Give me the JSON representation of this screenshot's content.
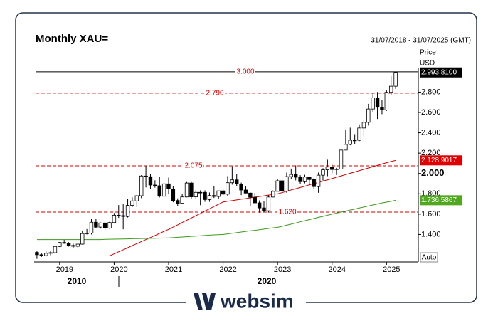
{
  "chart_data": {
    "type": "candlestick",
    "title": "Monthly XAU=",
    "date_range": "31/07/2018 - 31/07/2025 (GMT)",
    "axis_title": "Price",
    "axis_unit": "USD",
    "auto_label": "Auto",
    "brand": "websim",
    "xlim": [
      -0.3,
      84
    ],
    "xticks": [
      {
        "value": 5,
        "label": "2019"
      },
      {
        "value": 17,
        "label": "2020"
      },
      {
        "value": 29,
        "label": "2021"
      },
      {
        "value": 41,
        "label": "2022"
      },
      {
        "value": 53,
        "label": "2023"
      },
      {
        "value": 65,
        "label": "2024"
      },
      {
        "value": 77,
        "label": "2025"
      }
    ],
    "x_labels_row2": [
      "2010",
      "2020"
    ],
    "ylim": [
      1130,
      3020
    ],
    "yticks": [
      {
        "value": 1400,
        "label": "1.400"
      },
      {
        "value": 1600,
        "label": "1.600"
      },
      {
        "value": 1800,
        "label": "1.800"
      },
      {
        "value": 2000,
        "label": "2.000",
        "bold": true
      },
      {
        "value": 2200,
        "label": "2.200"
      },
      {
        "value": 2400,
        "label": "2.400"
      },
      {
        "value": 2600,
        "label": "2.600"
      },
      {
        "value": 2800,
        "label": "2.800"
      }
    ],
    "up_color": "#ffffff",
    "down_color": "#000000",
    "ohlc": [
      [
        1224,
        1236,
        1160,
        1201
      ],
      [
        1201,
        1214,
        1180,
        1192
      ],
      [
        1192,
        1243,
        1183,
        1215
      ],
      [
        1215,
        1237,
        1196,
        1221
      ],
      [
        1221,
        1284,
        1221,
        1282
      ],
      [
        1282,
        1326,
        1276,
        1321
      ],
      [
        1321,
        1346,
        1310,
        1313
      ],
      [
        1313,
        1324,
        1281,
        1292
      ],
      [
        1292,
        1309,
        1266,
        1284
      ],
      [
        1284,
        1306,
        1266,
        1305
      ],
      [
        1305,
        1439,
        1300,
        1409
      ],
      [
        1409,
        1453,
        1400,
        1413
      ],
      [
        1413,
        1555,
        1400,
        1520
      ],
      [
        1520,
        1557,
        1459,
        1472
      ],
      [
        1472,
        1518,
        1458,
        1513
      ],
      [
        1513,
        1516,
        1445,
        1463
      ],
      [
        1463,
        1525,
        1455,
        1517
      ],
      [
        1517,
        1611,
        1517,
        1589
      ],
      [
        1589,
        1689,
        1563,
        1585
      ],
      [
        1585,
        1704,
        1451,
        1577
      ],
      [
        1577,
        1747,
        1567,
        1686
      ],
      [
        1686,
        1765,
        1670,
        1730
      ],
      [
        1730,
        1786,
        1670,
        1781
      ],
      [
        1781,
        1984,
        1757,
        1975
      ],
      [
        1975,
        2075,
        1863,
        1968
      ],
      [
        1968,
        1992,
        1849,
        1886
      ],
      [
        1886,
        1933,
        1860,
        1879
      ],
      [
        1879,
        1965,
        1764,
        1776
      ],
      [
        1776,
        1906,
        1775,
        1898
      ],
      [
        1898,
        1959,
        1802,
        1847
      ],
      [
        1847,
        1872,
        1717,
        1734
      ],
      [
        1734,
        1755,
        1677,
        1707
      ],
      [
        1707,
        1798,
        1707,
        1769
      ],
      [
        1769,
        1916,
        1765,
        1906
      ],
      [
        1906,
        1917,
        1750,
        1770
      ],
      [
        1770,
        1832,
        1750,
        1814
      ],
      [
        1814,
        1834,
        1688,
        1814
      ],
      [
        1814,
        1834,
        1721,
        1743
      ],
      [
        1743,
        1813,
        1721,
        1783
      ],
      [
        1783,
        1877,
        1759,
        1774
      ],
      [
        1774,
        1831,
        1753,
        1829
      ],
      [
        1829,
        1853,
        1780,
        1796
      ],
      [
        1796,
        1974,
        1781,
        1909
      ],
      [
        1909,
        2070,
        1890,
        1937
      ],
      [
        1937,
        1998,
        1872,
        1897
      ],
      [
        1897,
        1910,
        1787,
        1837
      ],
      [
        1837,
        1879,
        1805,
        1807
      ],
      [
        1807,
        1814,
        1681,
        1766
      ],
      [
        1766,
        1808,
        1709,
        1711
      ],
      [
        1711,
        1735,
        1615,
        1661
      ],
      [
        1661,
        1730,
        1617,
        1633
      ],
      [
        1633,
        1786,
        1616,
        1768
      ],
      [
        1768,
        1833,
        1765,
        1824
      ],
      [
        1824,
        1949,
        1823,
        1928
      ],
      [
        1928,
        1959,
        1804,
        1826
      ],
      [
        1826,
        2009,
        1810,
        1969
      ],
      [
        1969,
        2048,
        1949,
        1990
      ],
      [
        1990,
        2079,
        1932,
        1963
      ],
      [
        1963,
        1983,
        1893,
        1919
      ],
      [
        1919,
        1987,
        1903,
        1965
      ],
      [
        1965,
        1966,
        1884,
        1940
      ],
      [
        1940,
        1953,
        1848,
        1871
      ],
      [
        1871,
        2009,
        1810,
        1983
      ],
      [
        1983,
        2052,
        1931,
        2036
      ],
      [
        2036,
        2135,
        1973,
        2063
      ],
      [
        2063,
        2088,
        2002,
        2039
      ],
      [
        2039,
        2055,
        1985,
        2044
      ],
      [
        2044,
        2236,
        2039,
        2230
      ],
      [
        2230,
        2431,
        2229,
        2286
      ],
      [
        2286,
        2450,
        2277,
        2327
      ],
      [
        2327,
        2387,
        2286,
        2326
      ],
      [
        2326,
        2483,
        2318,
        2447
      ],
      [
        2447,
        2531,
        2364,
        2503
      ],
      [
        2503,
        2685,
        2471,
        2634
      ],
      [
        2634,
        2790,
        2603,
        2744
      ],
      [
        2744,
        2801,
        2536,
        2651
      ],
      [
        2651,
        2726,
        2583,
        2624
      ],
      [
        2624,
        2817,
        2615,
        2798
      ],
      [
        2798,
        2956,
        2772,
        2858
      ],
      [
        2858,
        3000,
        2832,
        2993.81
      ]
    ],
    "lines": [
      {
        "color": "#d40000",
        "values": [
          null,
          null,
          null,
          null,
          null,
          null,
          null,
          null,
          null,
          null,
          null,
          null,
          null,
          null,
          null,
          null,
          1190,
          1210,
          1230,
          1250,
          1270,
          1290,
          1310,
          1330,
          1350,
          1370,
          1390,
          1410,
          1430,
          1450,
          1472,
          1495,
          1518,
          1540,
          1562,
          1585,
          1607,
          1630,
          1652,
          1675,
          1697,
          1720,
          1727,
          1733,
          1740,
          1747,
          1753,
          1760,
          1767,
          1773,
          1780,
          1787,
          1793,
          1800,
          1812,
          1825,
          1838,
          1850,
          1862,
          1875,
          1888,
          1900,
          1912,
          1925,
          1938,
          1950,
          1963,
          1976,
          1989,
          2002,
          2015,
          2028,
          2041,
          2054,
          2067,
          2080,
          2093,
          2106,
          2118,
          2128.9017
        ]
      },
      {
        "color": "#3c9a1e",
        "values": [
          1350,
          1350,
          1350,
          1350,
          1350,
          1350,
          1350,
          1350,
          1350,
          1350,
          1350,
          1350,
          1350,
          1350,
          1350,
          1352,
          1353,
          1354,
          1355,
          1356,
          1357,
          1358,
          1359,
          1360,
          1361,
          1362,
          1363,
          1364,
          1365,
          1366,
          1369,
          1372,
          1375,
          1378,
          1381,
          1384,
          1387,
          1390,
          1393,
          1396,
          1398,
          1400,
          1406,
          1412,
          1418,
          1424,
          1430,
          1436,
          1441,
          1447,
          1453,
          1459,
          1465,
          1470,
          1480,
          1491,
          1502,
          1513,
          1524,
          1535,
          1546,
          1557,
          1568,
          1578,
          1589,
          1600,
          1610,
          1620,
          1630,
          1640,
          1650,
          1660,
          1670,
          1680,
          1690,
          1700,
          1710,
          1718,
          1726,
          1736.5867
        ]
      }
    ],
    "hlines": [
      {
        "value": 3000,
        "label": "3.000",
        "color": "#000000",
        "dashed": false
      },
      {
        "value": 2790,
        "label": "2.790",
        "color": "#d40000",
        "dashed": true
      },
      {
        "value": 2075,
        "label": "2.075",
        "color": "#d40000",
        "dashed": true
      },
      {
        "value": 1620,
        "label": "1.620",
        "color": "#d40000",
        "dashed": true
      }
    ],
    "price_labels": [
      {
        "value": 2993.81,
        "label": "2.993,8100",
        "color": "#000000"
      },
      {
        "value": 2128.9017,
        "label": "2.128,9017",
        "color": "#e00000"
      },
      {
        "value": 1736.5867,
        "label": "1.736,5867",
        "color": "#4fa81e"
      }
    ]
  }
}
